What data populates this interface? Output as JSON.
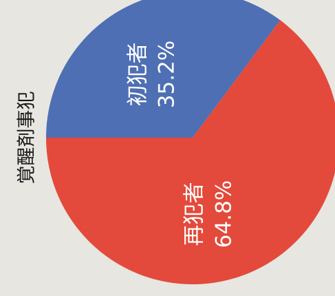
{
  "chart_data": {
    "type": "pie",
    "title": "覚醒剤事犯",
    "slices": [
      {
        "label": "初犯者",
        "value": 35.2,
        "value_label": "35.2%",
        "color": "#4e6fb3"
      },
      {
        "label": "再犯者",
        "value": 64.8,
        "value_label": "64.8%",
        "color": "#e34a3b"
      }
    ],
    "orientation": "rotated 90° counter-clockwise (text reads bottom-to-top)"
  },
  "colors": {
    "background": "#e8e6e1",
    "label_text": "#ffffff",
    "title_text": "#1a1a1a"
  }
}
